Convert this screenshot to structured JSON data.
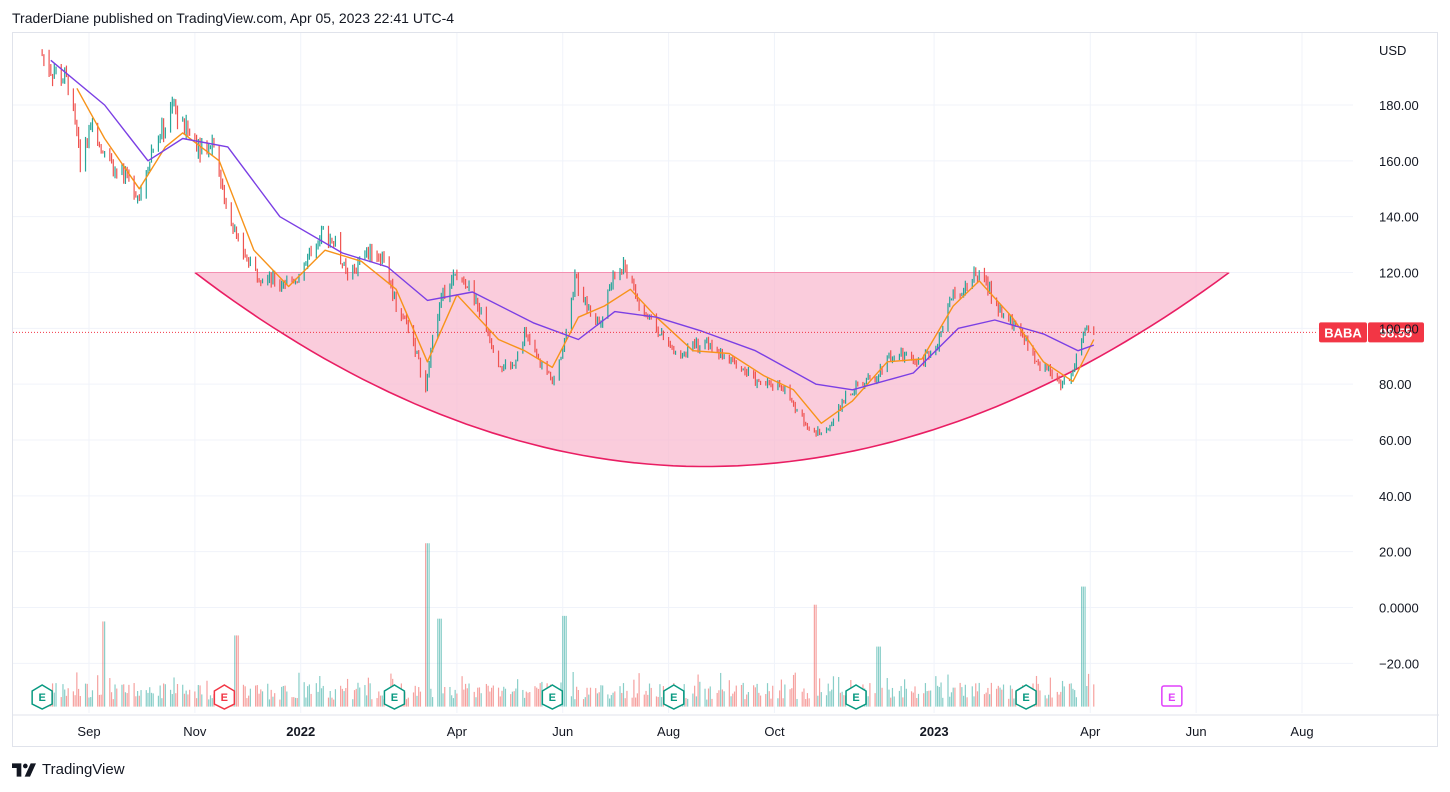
{
  "header": {
    "publisher_line": "TraderDiane published on TradingView.com, Apr 05, 2023 22:41 UTC-4"
  },
  "footer": {
    "brand": "TradingView"
  },
  "colors": {
    "bull": "#26a69a",
    "bear": "#ef5350",
    "ma_fast": "#f7931a",
    "ma_slow": "#7b3fe4",
    "pattern_fill": "#f8bbd0",
    "pattern_line": "#e91e63",
    "price_tag": "#f23645",
    "grid": "#f0f3fa"
  },
  "chart_data": {
    "type": "line",
    "symbol": "BABA",
    "last_price": "98.55",
    "currency": "USD",
    "y_ticks": [
      "180.00",
      "160.00",
      "140.00",
      "120.00",
      "100.00",
      "80.00",
      "60.00",
      "40.00",
      "20.00",
      "0.0000",
      "−20.00"
    ],
    "x_ticks": [
      {
        "label": "Sep",
        "date": "2021-09-01",
        "bold": false
      },
      {
        "label": "Nov",
        "date": "2021-11-01",
        "bold": false
      },
      {
        "label": "2022",
        "date": "2022-01-01",
        "bold": true
      },
      {
        "label": "Apr",
        "date": "2022-04-01",
        "bold": false
      },
      {
        "label": "Jun",
        "date": "2022-06-01",
        "bold": false
      },
      {
        "label": "Aug",
        "date": "2022-08-01",
        "bold": false
      },
      {
        "label": "Oct",
        "date": "2022-10-01",
        "bold": false
      },
      {
        "label": "2023",
        "date": "2023-01-01",
        "bold": true
      },
      {
        "label": "Apr",
        "date": "2023-04-01",
        "bold": false
      },
      {
        "label": "Jun",
        "date": "2023-06-01",
        "bold": false
      },
      {
        "label": "Aug",
        "date": "2023-08-01",
        "bold": false
      }
    ],
    "ylim": [
      -40,
      200
    ],
    "x_range": [
      "2021-08-05",
      "2023-09-10"
    ],
    "grid": true,
    "price_path": [
      [
        "2021-08-05",
        198
      ],
      [
        "2021-08-10",
        193
      ],
      [
        "2021-08-20",
        188
      ],
      [
        "2021-08-27",
        160
      ],
      [
        "2021-09-03",
        172
      ],
      [
        "2021-09-15",
        158
      ],
      [
        "2021-09-30",
        148
      ],
      [
        "2021-10-08",
        165
      ],
      [
        "2021-10-15",
        172
      ],
      [
        "2021-10-20",
        180
      ],
      [
        "2021-10-25",
        172
      ],
      [
        "2021-11-05",
        165
      ],
      [
        "2021-11-12",
        168
      ],
      [
        "2021-11-18",
        145
      ],
      [
        "2021-11-26",
        132
      ],
      [
        "2021-12-03",
        122
      ],
      [
        "2021-12-10",
        118
      ],
      [
        "2021-12-20",
        116
      ],
      [
        "2021-12-30",
        118
      ],
      [
        "2022-01-07",
        128
      ],
      [
        "2022-01-14",
        135
      ],
      [
        "2022-01-21",
        130
      ],
      [
        "2022-01-28",
        118
      ],
      [
        "2022-02-10",
        128
      ],
      [
        "2022-02-18",
        125
      ],
      [
        "2022-02-25",
        108
      ],
      [
        "2022-03-05",
        100
      ],
      [
        "2022-03-14",
        78
      ],
      [
        "2022-03-20",
        105
      ],
      [
        "2022-03-28",
        118
      ],
      [
        "2022-04-05",
        118
      ],
      [
        "2022-04-15",
        105
      ],
      [
        "2022-04-25",
        88
      ],
      [
        "2022-05-02",
        85
      ],
      [
        "2022-05-10",
        98
      ],
      [
        "2022-05-18",
        88
      ],
      [
        "2022-05-26",
        82
      ],
      [
        "2022-06-02",
        95
      ],
      [
        "2022-06-08",
        118
      ],
      [
        "2022-06-15",
        108
      ],
      [
        "2022-06-22",
        102
      ],
      [
        "2022-06-30",
        118
      ],
      [
        "2022-07-07",
        122
      ],
      [
        "2022-07-15",
        108
      ],
      [
        "2022-07-25",
        100
      ],
      [
        "2022-08-05",
        90
      ],
      [
        "2022-08-12",
        92
      ],
      [
        "2022-08-22",
        95
      ],
      [
        "2022-09-01",
        90
      ],
      [
        "2022-09-12",
        86
      ],
      [
        "2022-09-22",
        80
      ],
      [
        "2022-10-05",
        80
      ],
      [
        "2022-10-12",
        72
      ],
      [
        "2022-10-24",
        62
      ],
      [
        "2022-11-03",
        66
      ],
      [
        "2022-11-10",
        75
      ],
      [
        "2022-11-18",
        80
      ],
      [
        "2022-11-28",
        82
      ],
      [
        "2022-12-05",
        90
      ],
      [
        "2022-12-15",
        90
      ],
      [
        "2022-12-25",
        88
      ],
      [
        "2023-01-03",
        95
      ],
      [
        "2023-01-10",
        110
      ],
      [
        "2023-01-20",
        116
      ],
      [
        "2023-01-27",
        120
      ],
      [
        "2023-02-03",
        112
      ],
      [
        "2023-02-10",
        104
      ],
      [
        "2023-02-20",
        100
      ],
      [
        "2023-02-28",
        88
      ],
      [
        "2023-03-08",
        85
      ],
      [
        "2023-03-15",
        80
      ],
      [
        "2023-03-22",
        84
      ],
      [
        "2023-03-28",
        100
      ],
      [
        "2023-04-03",
        98.55
      ]
    ],
    "series": [
      {
        "values": [
          [
            "2021-08-25",
            186
          ],
          [
            "2021-09-10",
            168
          ],
          [
            "2021-09-30",
            150
          ],
          [
            "2021-10-15",
            165
          ],
          [
            "2021-10-25",
            170
          ],
          [
            "2021-11-15",
            160
          ],
          [
            "2021-12-05",
            128
          ],
          [
            "2021-12-25",
            115
          ],
          [
            "2022-01-15",
            128
          ],
          [
            "2022-02-05",
            124
          ],
          [
            "2022-02-25",
            114
          ],
          [
            "2022-03-15",
            88
          ],
          [
            "2022-04-01",
            112
          ],
          [
            "2022-04-25",
            96
          ],
          [
            "2022-05-10",
            92
          ],
          [
            "2022-05-26",
            86
          ],
          [
            "2022-06-10",
            104
          ],
          [
            "2022-06-25",
            108
          ],
          [
            "2022-07-10",
            114
          ],
          [
            "2022-07-25",
            104
          ],
          [
            "2022-08-15",
            92
          ],
          [
            "2022-09-05",
            91
          ],
          [
            "2022-09-25",
            83
          ],
          [
            "2022-10-12",
            78
          ],
          [
            "2022-10-28",
            66
          ],
          [
            "2022-11-15",
            74
          ],
          [
            "2022-12-05",
            88
          ],
          [
            "2022-12-25",
            89
          ],
          [
            "2023-01-12",
            108
          ],
          [
            "2023-01-27",
            117
          ],
          [
            "2023-02-15",
            104
          ],
          [
            "2023-03-05",
            88
          ],
          [
            "2023-03-22",
            81
          ],
          [
            "2023-04-03",
            96
          ]
        ]
      },
      {
        "values": [
          [
            "2021-08-10",
            196
          ],
          [
            "2021-09-10",
            180
          ],
          [
            "2021-10-05",
            160
          ],
          [
            "2021-10-25",
            168
          ],
          [
            "2021-11-20",
            165
          ],
          [
            "2021-12-20",
            140
          ],
          [
            "2022-01-25",
            127
          ],
          [
            "2022-02-20",
            122
          ],
          [
            "2022-03-15",
            110
          ],
          [
            "2022-04-10",
            113
          ],
          [
            "2022-05-15",
            102
          ],
          [
            "2022-06-10",
            96
          ],
          [
            "2022-07-01",
            106
          ],
          [
            "2022-07-25",
            104
          ],
          [
            "2022-08-20",
            99
          ],
          [
            "2022-09-20",
            92
          ],
          [
            "2022-10-25",
            80
          ],
          [
            "2022-11-15",
            78
          ],
          [
            "2022-12-20",
            84
          ],
          [
            "2023-01-15",
            100
          ],
          [
            "2023-02-05",
            103
          ],
          [
            "2023-03-05",
            98
          ],
          [
            "2023-03-25",
            92
          ],
          [
            "2023-04-03",
            94
          ]
        ]
      }
    ],
    "pattern": {
      "name": "rounded bottom",
      "top_level": 120,
      "bottom_level": 50.5,
      "start": "2021-11-01",
      "bottom_date": "2022-08-22",
      "end": "2023-06-20"
    },
    "earnings_markers": [
      {
        "label": "E",
        "date": "2021-08-05",
        "kind": "past-beat"
      },
      {
        "label": "E",
        "date": "2021-11-18",
        "kind": "past-miss"
      },
      {
        "label": "E",
        "date": "2022-02-24",
        "kind": "past-beat"
      },
      {
        "label": "E",
        "date": "2022-05-26",
        "kind": "past-beat"
      },
      {
        "label": "E",
        "date": "2022-08-04",
        "kind": "past-beat"
      },
      {
        "label": "E",
        "date": "2022-11-17",
        "kind": "past-beat"
      },
      {
        "label": "E",
        "date": "2023-02-23",
        "kind": "past-beat"
      },
      {
        "label": "E",
        "date": "2023-05-18",
        "kind": "upcoming"
      }
    ],
    "volume_spikes": [
      [
        "2022-03-15",
        23
      ],
      [
        "2022-03-22",
        -4
      ],
      [
        "2022-06-02",
        -3
      ],
      [
        "2022-10-24",
        1
      ],
      [
        "2022-11-30",
        -14
      ],
      [
        "2023-03-28",
        7.5
      ],
      [
        "2021-09-10",
        -5
      ],
      [
        "2021-11-25",
        -10
      ]
    ]
  }
}
